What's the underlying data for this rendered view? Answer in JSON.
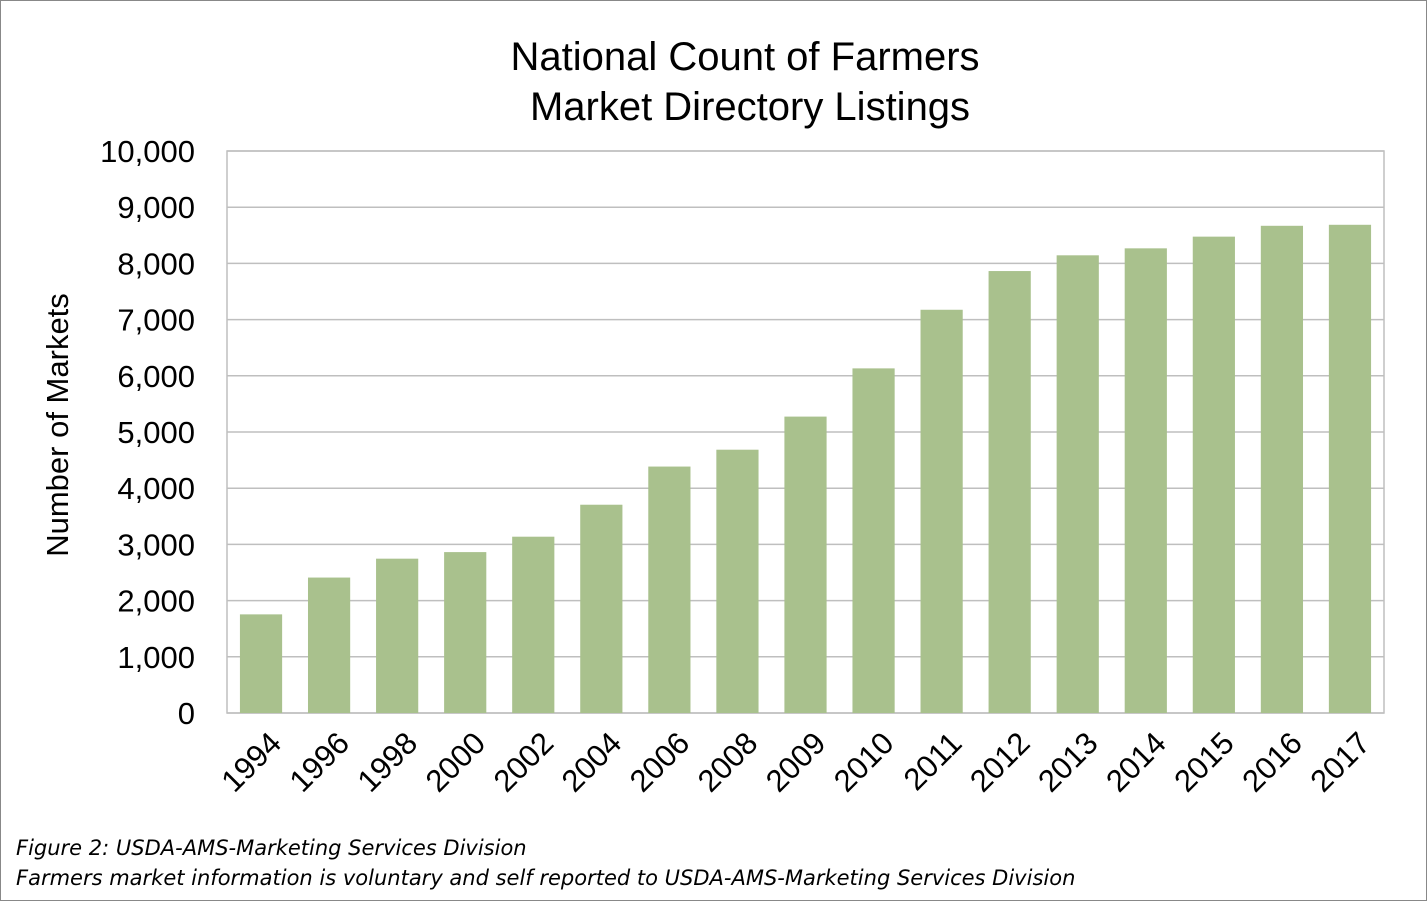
{
  "chart_data": {
    "type": "bar",
    "title": [
      "National Count of Farmers",
      "Market Directory Listings"
    ],
    "y_label": "Number of Markets",
    "categories": [
      "1994",
      "1996",
      "1998",
      "2000",
      "2002",
      "2004",
      "2006",
      "2008",
      "2009",
      "2010",
      "2011",
      "2012",
      "2013",
      "2014",
      "2015",
      "2016",
      "2017"
    ],
    "values": [
      1755,
      2410,
      2746,
      2863,
      3137,
      3706,
      4385,
      4685,
      5274,
      6132,
      7175,
      7864,
      8144,
      8268,
      8476,
      8669,
      8687
    ],
    "color": "#a9c18d",
    "ylim": [
      0,
      10000
    ],
    "yticks": [
      0,
      {
        "value": 1000,
        "label": "1,000"
      },
      {
        "value": 2000,
        "label": "2,000"
      },
      {
        "value": 3000,
        "label": "3,000"
      },
      {
        "value": 4000,
        "label": "4,000"
      },
      {
        "value": 5000,
        "label": "5,000"
      },
      {
        "value": 6000,
        "label": "6,000"
      },
      {
        "value": 7000,
        "label": "7,000"
      },
      {
        "value": 8000,
        "label": "8,000"
      },
      {
        "value": 9000,
        "label": "9,000"
      },
      {
        "value": 10000,
        "label": "10,000"
      }
    ],
    "grid": true,
    "notes": [
      "Figure 2: USDA-AMS-Marketing Services Division",
      "Farmers market information is voluntary and self reported to USDA-AMS-Marketing Services Division"
    ]
  }
}
